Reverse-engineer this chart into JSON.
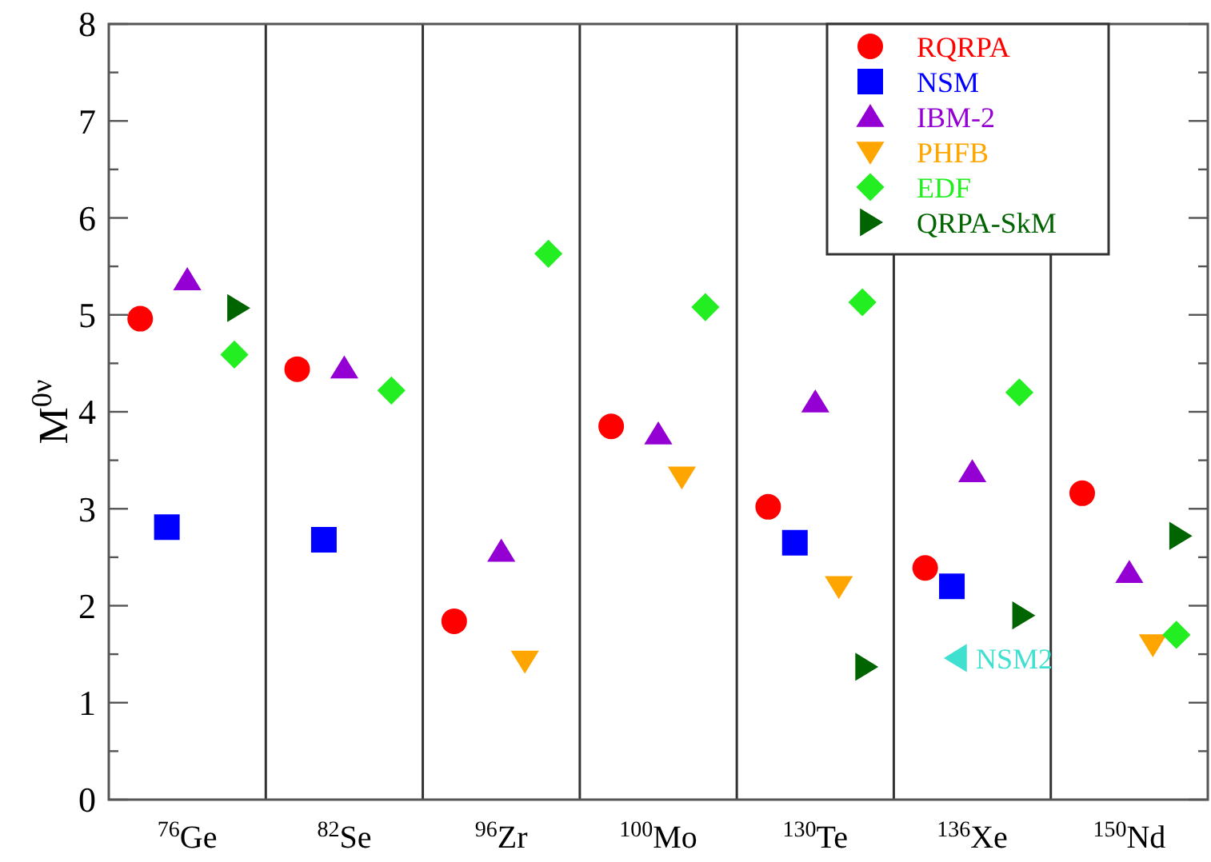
{
  "chart_data": {
    "type": "scatter",
    "ylabel": "M$^{0ν}$",
    "categories": [
      "$^{76}$Ge",
      "$^{82}$Se",
      "$^{96}$Zr",
      "$^{100}$Mo",
      "$^{130}$Te",
      "$^{136}$Xe",
      "$^{150}$Nd"
    ],
    "ylim": [
      0,
      8
    ],
    "yticks": [
      0,
      {
        "value": 0.5,
        "label": null
      },
      1,
      {
        "value": 1.5,
        "label": null
      },
      2,
      {
        "value": 2.5,
        "label": null
      },
      3,
      {
        "value": 3.5,
        "label": null
      },
      4,
      {
        "value": 4.5,
        "label": null
      },
      5,
      {
        "value": 5.5,
        "label": null
      },
      6,
      {
        "value": 6.5,
        "label": null
      },
      7,
      {
        "value": 7.5,
        "label": null
      },
      8
    ],
    "grid": false,
    "legend": "top right",
    "series": [
      {
        "name": "RQRPA",
        "color": "#ff0000",
        "marker": "circle",
        "values": [
          4.96,
          4.44,
          1.84,
          3.85,
          3.02,
          2.39,
          3.16
        ]
      },
      {
        "name": "NSM",
        "color": "#0000ff",
        "marker": "square",
        "values": [
          2.81,
          2.68,
          null,
          null,
          2.65,
          2.2,
          null
        ]
      },
      {
        "name": "IBM-2",
        "color": "#9400d3",
        "marker": "triangle",
        "values": [
          5.36,
          4.45,
          2.56,
          3.77,
          4.1,
          3.38,
          2.34
        ]
      },
      {
        "name": "PHFB",
        "color": "#ffa500",
        "marker": "triangle-down",
        "values": [
          null,
          null,
          1.43,
          3.33,
          2.2,
          null,
          1.6
        ]
      },
      {
        "name": "EDF",
        "color": "#22ee22",
        "marker": "diamond",
        "values": [
          4.59,
          4.22,
          5.63,
          5.08,
          5.13,
          4.2,
          1.7
        ]
      },
      {
        "name": "QRPA-SkM",
        "color": "#006400",
        "marker": "triangle-right",
        "values": [
          5.07,
          null,
          null,
          null,
          1.37,
          1.9,
          2.72
        ]
      },
      {
        "color": "#40e0d0",
        "marker": "triangle-left",
        "values": [
          null,
          null,
          null,
          null,
          null,
          1.46,
          null
        ]
      }
    ],
    "annotations": [
      {
        "text": "NSM2",
        "x": "$^{136}$Xe",
        "y": 1.46
      }
    ]
  }
}
